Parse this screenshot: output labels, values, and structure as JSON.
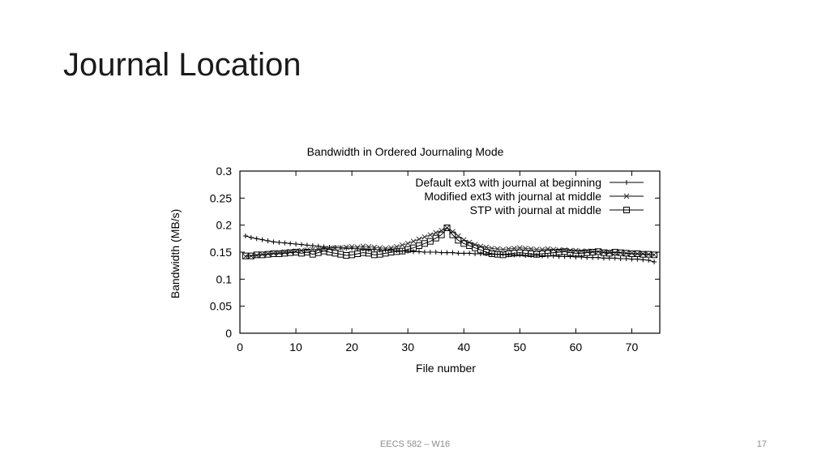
{
  "slide": {
    "title": "Journal Location",
    "footer_text": "EECS 582 – W16",
    "page_number": "17"
  },
  "chart_data": {
    "type": "line",
    "title": "Bandwidth in Ordered Journaling Mode",
    "xlabel": "File number",
    "ylabel": "Bandwidth (MB/s)",
    "xlim": [
      0,
      75
    ],
    "ylim": [
      0,
      0.3
    ],
    "xticks": [
      0,
      10,
      20,
      30,
      40,
      50,
      60,
      70
    ],
    "yticks": [
      0,
      0.05,
      0.1,
      0.15,
      0.2,
      0.25,
      0.3
    ],
    "legend_position": "top-right",
    "x": [
      1,
      2,
      3,
      4,
      5,
      6,
      7,
      8,
      9,
      10,
      11,
      12,
      13,
      14,
      15,
      16,
      17,
      18,
      19,
      20,
      21,
      22,
      23,
      24,
      25,
      26,
      27,
      28,
      29,
      30,
      31,
      32,
      33,
      34,
      35,
      36,
      37,
      38,
      39,
      40,
      41,
      42,
      43,
      44,
      45,
      46,
      47,
      48,
      49,
      50,
      51,
      52,
      53,
      54,
      55,
      56,
      57,
      58,
      59,
      60,
      61,
      62,
      63,
      64,
      65,
      66,
      67,
      68,
      69,
      70,
      71,
      72,
      73,
      74
    ],
    "series": [
      {
        "name": "Default ext3 with journal at beginning",
        "marker": "plus",
        "values": [
          0.18,
          0.177,
          0.175,
          0.173,
          0.171,
          0.169,
          0.168,
          0.167,
          0.166,
          0.165,
          0.164,
          0.163,
          0.162,
          0.161,
          0.16,
          0.159,
          0.159,
          0.158,
          0.157,
          0.157,
          0.156,
          0.156,
          0.155,
          0.155,
          0.154,
          0.154,
          0.153,
          0.153,
          0.152,
          0.152,
          0.151,
          0.151,
          0.15,
          0.15,
          0.15,
          0.149,
          0.149,
          0.149,
          0.148,
          0.148,
          0.148,
          0.147,
          0.147,
          0.147,
          0.146,
          0.146,
          0.146,
          0.145,
          0.145,
          0.145,
          0.144,
          0.144,
          0.144,
          0.143,
          0.143,
          0.143,
          0.142,
          0.142,
          0.142,
          0.141,
          0.141,
          0.14,
          0.14,
          0.14,
          0.139,
          0.139,
          0.139,
          0.138,
          0.138,
          0.137,
          0.137,
          0.136,
          0.135,
          0.132
        ]
      },
      {
        "name": "Modified ext3 with journal at middle",
        "marker": "cross",
        "values": [
          0.142,
          0.143,
          0.144,
          0.146,
          0.147,
          0.148,
          0.149,
          0.15,
          0.151,
          0.152,
          0.153,
          0.154,
          0.155,
          0.155,
          0.156,
          0.157,
          0.158,
          0.158,
          0.159,
          0.16,
          0.159,
          0.161,
          0.16,
          0.159,
          0.158,
          0.157,
          0.158,
          0.16,
          0.163,
          0.166,
          0.17,
          0.174,
          0.178,
          0.182,
          0.186,
          0.19,
          0.195,
          0.188,
          0.18,
          0.173,
          0.168,
          0.164,
          0.161,
          0.159,
          0.157,
          0.156,
          0.155,
          0.156,
          0.157,
          0.158,
          0.157,
          0.156,
          0.155,
          0.155,
          0.156,
          0.155,
          0.154,
          0.154,
          0.153,
          0.153,
          0.152,
          0.152,
          0.151,
          0.151,
          0.15,
          0.15,
          0.149,
          0.149,
          0.148,
          0.148,
          0.147,
          0.147,
          0.146,
          0.145
        ]
      },
      {
        "name": "STP with journal at middle",
        "marker": "square",
        "values": [
          0.143,
          0.143,
          0.145,
          0.145,
          0.146,
          0.147,
          0.147,
          0.148,
          0.149,
          0.15,
          0.148,
          0.15,
          0.146,
          0.149,
          0.152,
          0.15,
          0.148,
          0.146,
          0.144,
          0.145,
          0.147,
          0.149,
          0.148,
          0.145,
          0.146,
          0.148,
          0.15,
          0.151,
          0.152,
          0.155,
          0.158,
          0.162,
          0.166,
          0.17,
          0.176,
          0.182,
          0.195,
          0.182,
          0.172,
          0.166,
          0.162,
          0.158,
          0.154,
          0.15,
          0.147,
          0.146,
          0.145,
          0.147,
          0.148,
          0.149,
          0.148,
          0.147,
          0.146,
          0.147,
          0.148,
          0.149,
          0.15,
          0.151,
          0.149,
          0.148,
          0.148,
          0.149,
          0.15,
          0.151,
          0.149,
          0.148,
          0.15,
          0.149,
          0.148,
          0.147,
          0.147,
          0.146,
          0.146,
          0.145
        ]
      }
    ]
  }
}
